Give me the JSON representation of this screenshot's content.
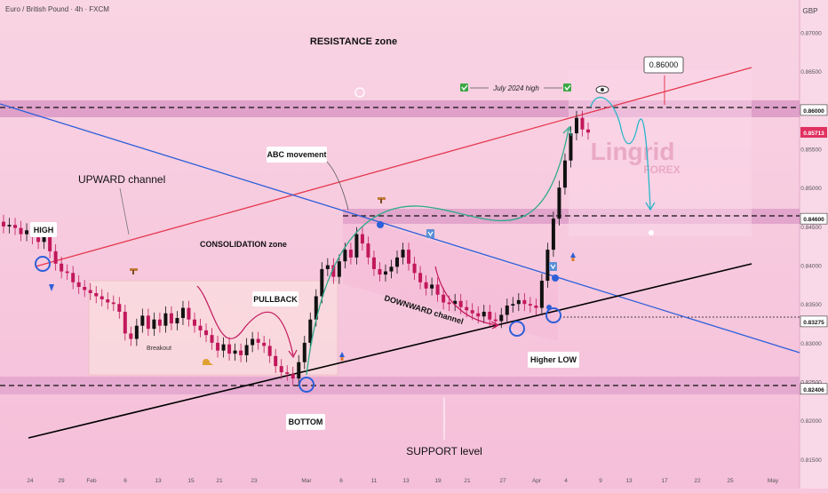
{
  "header": {
    "symbol_line": "Euro / British Pound · 4h · FXCM",
    "currency": "GBP"
  },
  "chart_data": {
    "type": "candlestick",
    "title": "Euro / British Pound · 4h · FXCM",
    "currency": "GBP",
    "y_ticks": [
      "0.87000",
      "0.86500",
      "0.86000",
      "0.85500",
      "0.85000",
      "0.84500",
      "0.84000",
      "0.83500",
      "0.83000",
      "0.82500",
      "0.82000",
      "0.81500"
    ],
    "y_range": [
      0.8135,
      0.8735
    ],
    "x_ticks": [
      "24",
      "29",
      "Feb",
      "6",
      "13",
      "15",
      "21",
      "23",
      "Mar",
      "6",
      "11",
      "13",
      "19",
      "21",
      "27",
      "Apr",
      "4",
      "9",
      "13",
      "17",
      "22",
      "25",
      "May"
    ],
    "price_badges": [
      {
        "label": "0.86000",
        "role": "level"
      },
      {
        "label": "0.85713",
        "role": "last"
      },
      {
        "label": "0.84600",
        "role": "level"
      },
      {
        "label": "0.83275",
        "role": "level"
      },
      {
        "label": "0.82406",
        "role": "level"
      }
    ],
    "levels": [
      0.86,
      0.846,
      0.83275,
      0.82406
    ],
    "candles_close": [
      0.845,
      0.8452,
      0.8448,
      0.844,
      0.8445,
      0.8436,
      0.843,
      0.844,
      0.8418,
      0.8402,
      0.8392,
      0.839,
      0.8378,
      0.8372,
      0.8368,
      0.8364,
      0.836,
      0.8356,
      0.8352,
      0.835,
      0.834,
      0.8312,
      0.8305,
      0.8322,
      0.8335,
      0.8318,
      0.833,
      0.8322,
      0.8338,
      0.8325,
      0.8332,
      0.8345,
      0.833,
      0.8322,
      0.8316,
      0.831,
      0.83,
      0.829,
      0.8298,
      0.8286,
      0.829,
      0.8284,
      0.8297,
      0.8305,
      0.83,
      0.8296,
      0.8283,
      0.827,
      0.8262,
      0.826,
      0.8254,
      0.8275,
      0.83,
      0.833,
      0.836,
      0.8395,
      0.84,
      0.8385,
      0.8405,
      0.842,
      0.841,
      0.844,
      0.8428,
      0.841,
      0.8395,
      0.8388,
      0.8392,
      0.8398,
      0.841,
      0.842,
      0.8402,
      0.839,
      0.8378,
      0.837,
      0.8375,
      0.8362,
      0.8352,
      0.835,
      0.8354,
      0.8346,
      0.8342,
      0.8338,
      0.8334,
      0.834,
      0.833,
      0.8328,
      0.8336,
      0.8348,
      0.835,
      0.8355,
      0.835,
      0.8348,
      0.8345,
      0.838,
      0.842,
      0.846,
      0.85,
      0.8535,
      0.857,
      0.859,
      0.8575,
      0.8571
    ],
    "annotations": {
      "resistance": "RESISTANCE zone",
      "upward_channel": "UPWARD channel",
      "high": "HIGH",
      "consolidation": "CONSOLIDATION zone",
      "pullback": "PULLBACK",
      "breakout": "Breakout",
      "abc": "ABC movement",
      "downward_channel": "DOWNWARD channel",
      "higher_low": "Higher LOW",
      "bottom": "BOTTOM",
      "support": "SUPPORT level",
      "july_high": "July 2024 high",
      "target_badge": "0.86000"
    },
    "watermark": "Lingrid",
    "watermark_sub": "FOREX",
    "colors": {
      "background": "#f7c7de",
      "bull": "#111111",
      "bear": "#c2185b",
      "red_line": "#e53950",
      "blue_line": "#2e5fd9",
      "black_line": "#000000",
      "zone": "#d88ac0",
      "arc": "#2faa8a",
      "projection": "#29b6c9",
      "last_price": "#e0315f"
    }
  }
}
